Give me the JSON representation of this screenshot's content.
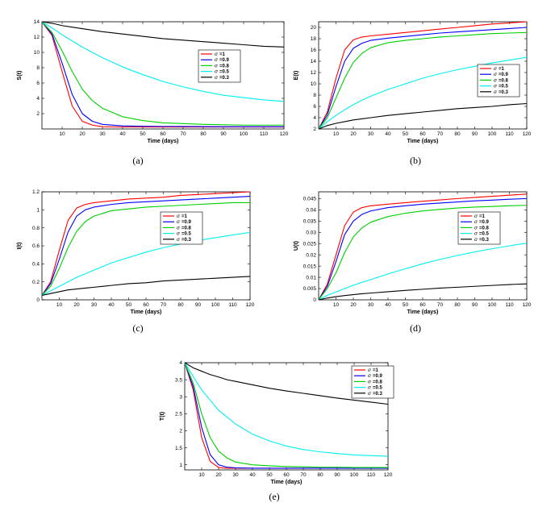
{
  "figure": {
    "legend_symbol": "σ",
    "colors": {
      "s1": "#ff0000",
      "s09": "#0000ff",
      "s08": "#00d000",
      "s05": "#00f0f0",
      "s03": "#000000"
    }
  },
  "chart_data": [
    {
      "type": "line",
      "caption": "(a)",
      "xlabel": "Time (days)",
      "ylabel": "S(t)",
      "xlim": [
        0,
        120
      ],
      "ylim": [
        0,
        14
      ],
      "xticks": [
        10,
        20,
        30,
        40,
        50,
        60,
        70,
        80,
        90,
        100,
        110,
        120
      ],
      "yticks": [
        2,
        4,
        6,
        8,
        10,
        12,
        14
      ],
      "legend_position": "right-middle",
      "x": [
        0,
        5,
        10,
        15,
        20,
        25,
        30,
        40,
        50,
        60,
        70,
        80,
        90,
        100,
        110,
        120
      ],
      "series": [
        {
          "name": "=1",
          "color": "#ff0000",
          "values": [
            14,
            12.2,
            7.5,
            3.0,
            1.0,
            0.5,
            0.3,
            0.25,
            0.25,
            0.25,
            0.25,
            0.25,
            0.25,
            0.25,
            0.25,
            0.25
          ]
        },
        {
          "name": "=0.9",
          "color": "#0000ff",
          "values": [
            14,
            12.4,
            8.6,
            4.5,
            2.0,
            1.0,
            0.6,
            0.4,
            0.35,
            0.33,
            0.32,
            0.31,
            0.3,
            0.3,
            0.3,
            0.3
          ]
        },
        {
          "name": "=0.8",
          "color": "#00d000",
          "values": [
            14,
            12.6,
            10.2,
            7.5,
            5.2,
            3.7,
            2.7,
            1.6,
            1.1,
            0.8,
            0.7,
            0.6,
            0.55,
            0.5,
            0.5,
            0.5
          ]
        },
        {
          "name": "=0.5",
          "color": "#00f0f0",
          "values": [
            14,
            13.2,
            12.3,
            11.5,
            10.7,
            10.0,
            9.3,
            8.1,
            7.1,
            6.2,
            5.5,
            4.9,
            4.4,
            4.1,
            3.8,
            3.6
          ]
        },
        {
          "name": "=0.3",
          "color": "#000000",
          "values": [
            14,
            13.8,
            13.5,
            13.3,
            13.1,
            12.9,
            12.7,
            12.4,
            12.1,
            11.8,
            11.6,
            11.4,
            11.2,
            11.0,
            10.8,
            10.7
          ]
        }
      ]
    },
    {
      "type": "line",
      "caption": "(b)",
      "xlabel": "Time (days)",
      "ylabel": "E(t)",
      "xlim": [
        0,
        120
      ],
      "ylim": [
        2,
        21
      ],
      "xticks": [
        10,
        20,
        30,
        40,
        50,
        60,
        70,
        80,
        90,
        100,
        110,
        120
      ],
      "yticks": [
        2,
        4,
        6,
        8,
        10,
        12,
        14,
        16,
        18,
        20
      ],
      "legend_position": "right-middle",
      "x": [
        0,
        5,
        10,
        15,
        20,
        25,
        30,
        40,
        50,
        60,
        70,
        80,
        90,
        100,
        110,
        120
      ],
      "series": [
        {
          "name": "=1",
          "color": "#ff0000",
          "values": [
            2,
            5,
            11,
            16,
            17.8,
            18.3,
            18.5,
            18.8,
            19.1,
            19.4,
            19.7,
            20.0,
            20.3,
            20.6,
            20.8,
            21.0
          ]
        },
        {
          "name": "=0.9",
          "color": "#0000ff",
          "values": [
            2,
            4.5,
            9.5,
            14,
            16.3,
            17.2,
            17.7,
            18.1,
            18.4,
            18.7,
            19.0,
            19.2,
            19.4,
            19.6,
            19.8,
            20.0
          ]
        },
        {
          "name": "=0.8",
          "color": "#00d000",
          "values": [
            2,
            4,
            7.5,
            11,
            13.8,
            15.4,
            16.4,
            17.3,
            17.7,
            18.0,
            18.3,
            18.5,
            18.7,
            18.9,
            19.0,
            19.1
          ]
        },
        {
          "name": "=0.5",
          "color": "#00f0f0",
          "values": [
            2,
            3.3,
            4.4,
            5.4,
            6.3,
            7.1,
            7.8,
            9.0,
            10.0,
            11.0,
            11.8,
            12.5,
            13.1,
            13.7,
            14.2,
            14.7
          ]
        },
        {
          "name": "=0.3",
          "color": "#000000",
          "values": [
            2,
            2.6,
            3.0,
            3.3,
            3.6,
            3.8,
            4.0,
            4.4,
            4.7,
            5.0,
            5.3,
            5.6,
            5.8,
            6.0,
            6.3,
            6.5
          ]
        }
      ]
    },
    {
      "type": "line",
      "caption": "(c)",
      "xlabel": "Time (days)",
      "ylabel": "I(t)",
      "xlim": [
        0,
        120
      ],
      "ylim": [
        0,
        1.2
      ],
      "xticks": [
        10,
        20,
        30,
        40,
        50,
        60,
        70,
        80,
        90,
        100,
        110,
        120
      ],
      "yticks": [
        0,
        0.2,
        0.4,
        0.6,
        0.8,
        1,
        1.2
      ],
      "legend_position": "right-middle",
      "x": [
        0,
        5,
        10,
        15,
        20,
        25,
        30,
        40,
        50,
        60,
        70,
        80,
        90,
        100,
        110,
        120
      ],
      "series": [
        {
          "name": "=1",
          "color": "#ff0000",
          "values": [
            0.05,
            0.2,
            0.55,
            0.88,
            1.02,
            1.06,
            1.08,
            1.1,
            1.12,
            1.13,
            1.14,
            1.16,
            1.17,
            1.18,
            1.19,
            1.2
          ]
        },
        {
          "name": "=0.9",
          "color": "#0000ff",
          "values": [
            0.05,
            0.18,
            0.45,
            0.75,
            0.93,
            1.0,
            1.03,
            1.06,
            1.08,
            1.09,
            1.1,
            1.11,
            1.12,
            1.13,
            1.14,
            1.15
          ]
        },
        {
          "name": "=0.8",
          "color": "#00d000",
          "values": [
            0.05,
            0.15,
            0.35,
            0.58,
            0.76,
            0.87,
            0.93,
            0.99,
            1.01,
            1.03,
            1.04,
            1.05,
            1.06,
            1.07,
            1.08,
            1.08
          ]
        },
        {
          "name": "=0.5",
          "color": "#00f0f0",
          "values": [
            0.05,
            0.1,
            0.15,
            0.2,
            0.25,
            0.29,
            0.33,
            0.41,
            0.47,
            0.53,
            0.58,
            0.62,
            0.66,
            0.69,
            0.72,
            0.75
          ]
        },
        {
          "name": "=0.3",
          "color": "#000000",
          "values": [
            0.05,
            0.07,
            0.09,
            0.11,
            0.12,
            0.13,
            0.14,
            0.16,
            0.18,
            0.19,
            0.21,
            0.22,
            0.23,
            0.24,
            0.25,
            0.26
          ]
        }
      ]
    },
    {
      "type": "line",
      "caption": "(d)",
      "xlabel": "Time (days)",
      "ylabel": "U(t)",
      "xlim": [
        0,
        120
      ],
      "ylim": [
        0,
        0.048
      ],
      "xticks": [
        10,
        20,
        30,
        40,
        50,
        60,
        70,
        80,
        90,
        100,
        110,
        120
      ],
      "yticks": [
        0,
        0.005,
        0.01,
        0.015,
        0.02,
        0.025,
        0.03,
        0.035,
        0.04,
        0.045
      ],
      "legend_position": "right-middle",
      "x": [
        0,
        5,
        10,
        15,
        20,
        25,
        30,
        40,
        50,
        60,
        70,
        80,
        90,
        100,
        110,
        120
      ],
      "series": [
        {
          "name": "=1",
          "color": "#ff0000",
          "values": [
            0,
            0.007,
            0.02,
            0.033,
            0.039,
            0.041,
            0.0418,
            0.0425,
            0.0432,
            0.0438,
            0.0444,
            0.045,
            0.0455,
            0.046,
            0.0465,
            0.047
          ]
        },
        {
          "name": "=0.9",
          "color": "#0000ff",
          "values": [
            0,
            0.006,
            0.017,
            0.029,
            0.035,
            0.038,
            0.0395,
            0.041,
            0.0418,
            0.0425,
            0.043,
            0.0435,
            0.044,
            0.0443,
            0.0447,
            0.045
          ]
        },
        {
          "name": "=0.8",
          "color": "#00d000",
          "values": [
            0,
            0.005,
            0.012,
            0.021,
            0.028,
            0.032,
            0.0345,
            0.037,
            0.0385,
            0.0395,
            0.0402,
            0.0408,
            0.0412,
            0.0415,
            0.0418,
            0.042
          ]
        },
        {
          "name": "=0.5",
          "color": "#00f0f0",
          "values": [
            0,
            0.002,
            0.0035,
            0.005,
            0.0065,
            0.0078,
            0.009,
            0.0115,
            0.0138,
            0.016,
            0.018,
            0.0197,
            0.0213,
            0.0227,
            0.024,
            0.0252
          ]
        },
        {
          "name": "=0.3",
          "color": "#000000",
          "values": [
            0,
            0.0008,
            0.0014,
            0.0019,
            0.0023,
            0.0027,
            0.003,
            0.0036,
            0.0042,
            0.0047,
            0.0052,
            0.0056,
            0.006,
            0.0064,
            0.0068,
            0.0071
          ]
        }
      ]
    },
    {
      "type": "line",
      "caption": "(e)",
      "xlabel": "Time (days)",
      "ylabel": "T(t)",
      "xlim": [
        0,
        120
      ],
      "ylim": [
        0.85,
        4
      ],
      "xticks": [
        10,
        20,
        30,
        40,
        50,
        60,
        70,
        80,
        90,
        100,
        110,
        120
      ],
      "yticks": [
        1,
        1.5,
        2,
        2.5,
        3,
        3.5,
        4
      ],
      "legend_position": "top-right",
      "x": [
        0,
        5,
        10,
        15,
        20,
        25,
        30,
        40,
        50,
        60,
        70,
        80,
        90,
        100,
        110,
        120
      ],
      "series": [
        {
          "name": "=1",
          "color": "#ff0000",
          "values": [
            4,
            3.2,
            1.8,
            1.1,
            0.92,
            0.9,
            0.9,
            0.9,
            0.9,
            0.9,
            0.9,
            0.9,
            0.9,
            0.9,
            0.9,
            0.9
          ]
        },
        {
          "name": "=0.9",
          "color": "#0000ff",
          "values": [
            4,
            3.3,
            2.1,
            1.3,
            1.0,
            0.93,
            0.91,
            0.9,
            0.9,
            0.9,
            0.9,
            0.9,
            0.9,
            0.9,
            0.9,
            0.9
          ]
        },
        {
          "name": "=0.8",
          "color": "#00d000",
          "values": [
            4,
            3.4,
            2.5,
            1.8,
            1.4,
            1.2,
            1.08,
            1.0,
            0.97,
            0.95,
            0.94,
            0.93,
            0.93,
            0.92,
            0.92,
            0.92
          ]
        },
        {
          "name": "=0.5",
          "color": "#00f0f0",
          "values": [
            4,
            3.6,
            3.2,
            2.9,
            2.6,
            2.4,
            2.2,
            1.9,
            1.7,
            1.55,
            1.45,
            1.38,
            1.33,
            1.29,
            1.27,
            1.25
          ]
        },
        {
          "name": "=0.3",
          "color": "#000000",
          "values": [
            4,
            3.85,
            3.75,
            3.65,
            3.58,
            3.5,
            3.45,
            3.35,
            3.25,
            3.17,
            3.1,
            3.03,
            2.96,
            2.9,
            2.84,
            2.78
          ]
        }
      ]
    }
  ]
}
